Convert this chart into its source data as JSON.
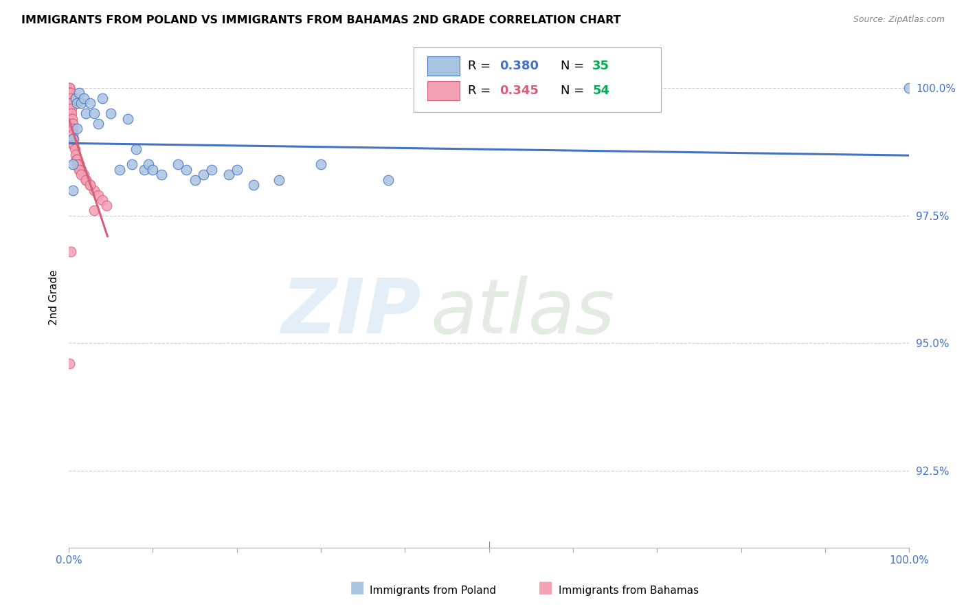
{
  "title": "IMMIGRANTS FROM POLAND VS IMMIGRANTS FROM BAHAMAS 2ND GRADE CORRELATION CHART",
  "source": "Source: ZipAtlas.com",
  "ylabel": "2nd Grade",
  "ytick_labels": [
    "100.0%",
    "97.5%",
    "95.0%",
    "92.5%"
  ],
  "ytick_values": [
    1.0,
    0.975,
    0.95,
    0.925
  ],
  "xlim": [
    0.0,
    1.0
  ],
  "ylim": [
    0.91,
    1.008
  ],
  "poland_color": "#a8c4e0",
  "bahamas_color": "#f4a0b5",
  "poland_line_color": "#4472c4",
  "bahamas_line_color": "#d45f7a",
  "poland_scatter_x": [
    0.005,
    0.005,
    0.005,
    0.008,
    0.01,
    0.01,
    0.012,
    0.015,
    0.018,
    0.02,
    0.025,
    0.03,
    0.035,
    0.04,
    0.05,
    0.06,
    0.07,
    0.075,
    0.08,
    0.09,
    0.095,
    0.1,
    0.11,
    0.13,
    0.14,
    0.15,
    0.16,
    0.17,
    0.19,
    0.2,
    0.22,
    0.25,
    0.3,
    0.38,
    1.0
  ],
  "poland_scatter_y": [
    0.99,
    0.985,
    0.98,
    0.998,
    0.997,
    0.992,
    0.999,
    0.997,
    0.998,
    0.995,
    0.997,
    0.995,
    0.993,
    0.998,
    0.995,
    0.984,
    0.994,
    0.985,
    0.988,
    0.984,
    0.985,
    0.984,
    0.983,
    0.985,
    0.984,
    0.982,
    0.983,
    0.984,
    0.983,
    0.984,
    0.981,
    0.982,
    0.985,
    0.982,
    1.0
  ],
  "bahamas_scatter_x": [
    0.001,
    0.001,
    0.001,
    0.001,
    0.001,
    0.001,
    0.001,
    0.001,
    0.001,
    0.001,
    0.001,
    0.001,
    0.002,
    0.002,
    0.002,
    0.002,
    0.002,
    0.002,
    0.003,
    0.003,
    0.003,
    0.003,
    0.003,
    0.004,
    0.004,
    0.005,
    0.005,
    0.005,
    0.005,
    0.005,
    0.006,
    0.006,
    0.007,
    0.008,
    0.009,
    0.01,
    0.012,
    0.013,
    0.015,
    0.018,
    0.02,
    0.025,
    0.03,
    0.035,
    0.04,
    0.045,
    0.01,
    0.012,
    0.015,
    0.02,
    0.025,
    0.03,
    0.002,
    0.001
  ],
  "bahamas_scatter_y": [
    1.0,
    1.0,
    1.0,
    1.0,
    0.999,
    0.999,
    0.999,
    0.999,
    0.998,
    0.998,
    0.997,
    0.997,
    0.999,
    0.998,
    0.997,
    0.996,
    0.996,
    0.995,
    0.997,
    0.996,
    0.995,
    0.994,
    0.993,
    0.994,
    0.993,
    0.993,
    0.992,
    0.991,
    0.99,
    0.989,
    0.99,
    0.989,
    0.988,
    0.987,
    0.986,
    0.986,
    0.985,
    0.984,
    0.984,
    0.983,
    0.982,
    0.981,
    0.98,
    0.979,
    0.978,
    0.977,
    0.985,
    0.984,
    0.983,
    0.982,
    0.981,
    0.976,
    0.968,
    0.946
  ],
  "watermark_zip": "ZIP",
  "watermark_atlas": "atlas",
  "legend_poland_r": "0.380",
  "legend_poland_n": "35",
  "legend_bahamas_r": "0.345",
  "legend_bahamas_n": "54",
  "legend_r_color": "#4472c4",
  "legend_n_color": "#00b050",
  "bahamas_r_color": "#d45f7a"
}
